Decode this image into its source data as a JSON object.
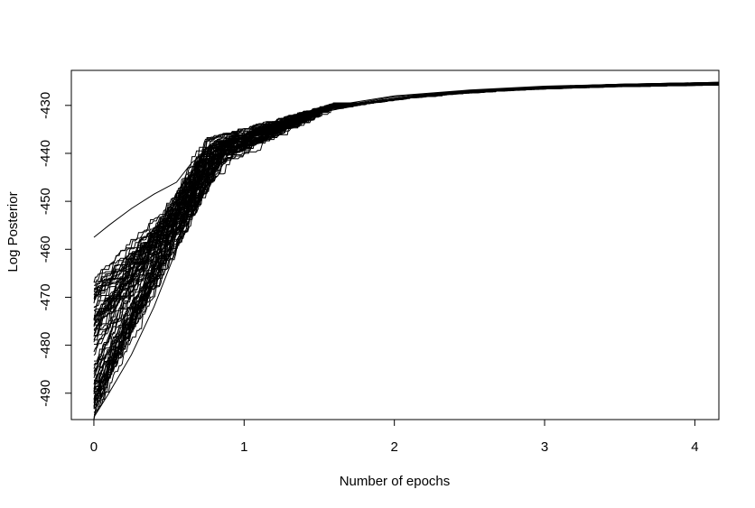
{
  "chart_data": {
    "type": "line",
    "title": "",
    "xlabel": "Number of epochs",
    "ylabel": "Log Posterior",
    "xlim": [
      -0.15,
      4.16
    ],
    "ylim": [
      -495.5,
      -422.7
    ],
    "xticks": [
      0,
      1,
      2,
      3,
      4
    ],
    "yticks": [
      -430,
      -440,
      -450,
      -460,
      -470,
      -480,
      -490
    ],
    "grid": false,
    "legend": "none",
    "line_color": "#000000",
    "series_count": 80,
    "series_end_x": 4.16,
    "series": [
      {
        "name": "",
        "x": [
          0.0,
          0.1,
          0.25,
          0.4,
          0.55,
          0.65,
          0.75,
          1.0,
          1.25,
          1.5,
          2.0,
          2.5,
          3.0,
          3.5,
          4.0,
          4.16
        ],
        "y": [
          -486.0,
          -478.0,
          -466.0,
          -458.0,
          -450.0,
          -444.0,
          -439.0,
          -436.0,
          -433.0,
          -430.5,
          -428.0,
          -426.8,
          -426.0,
          -425.6,
          -425.3,
          -425.2
        ]
      },
      {
        "name": "",
        "x": [
          0.0,
          0.1,
          0.25,
          0.4,
          0.55,
          0.65,
          0.75,
          1.0,
          1.25,
          1.5,
          2.0,
          2.5,
          3.0,
          3.5,
          4.0,
          4.16
        ],
        "y": [
          -457.5,
          -455.0,
          -451.5,
          -448.5,
          -446.0,
          -442.0,
          -439.5,
          -436.5,
          -433.5,
          -430.8,
          -428.2,
          -426.9,
          -426.1,
          -425.6,
          -425.3,
          -425.2
        ]
      },
      {
        "name": "",
        "x": [
          0.0,
          0.1,
          0.25,
          0.4,
          0.55,
          0.65,
          0.75,
          1.0,
          1.25,
          1.5,
          2.0,
          2.5,
          3.0,
          3.5,
          4.0,
          4.16
        ],
        "y": [
          -495.0,
          -490.0,
          -482.0,
          -472.0,
          -460.0,
          -450.0,
          -442.0,
          -438.5,
          -435.0,
          -431.5,
          -428.5,
          -427.0,
          -426.1,
          -425.6,
          -425.3,
          -425.2
        ]
      }
    ]
  }
}
